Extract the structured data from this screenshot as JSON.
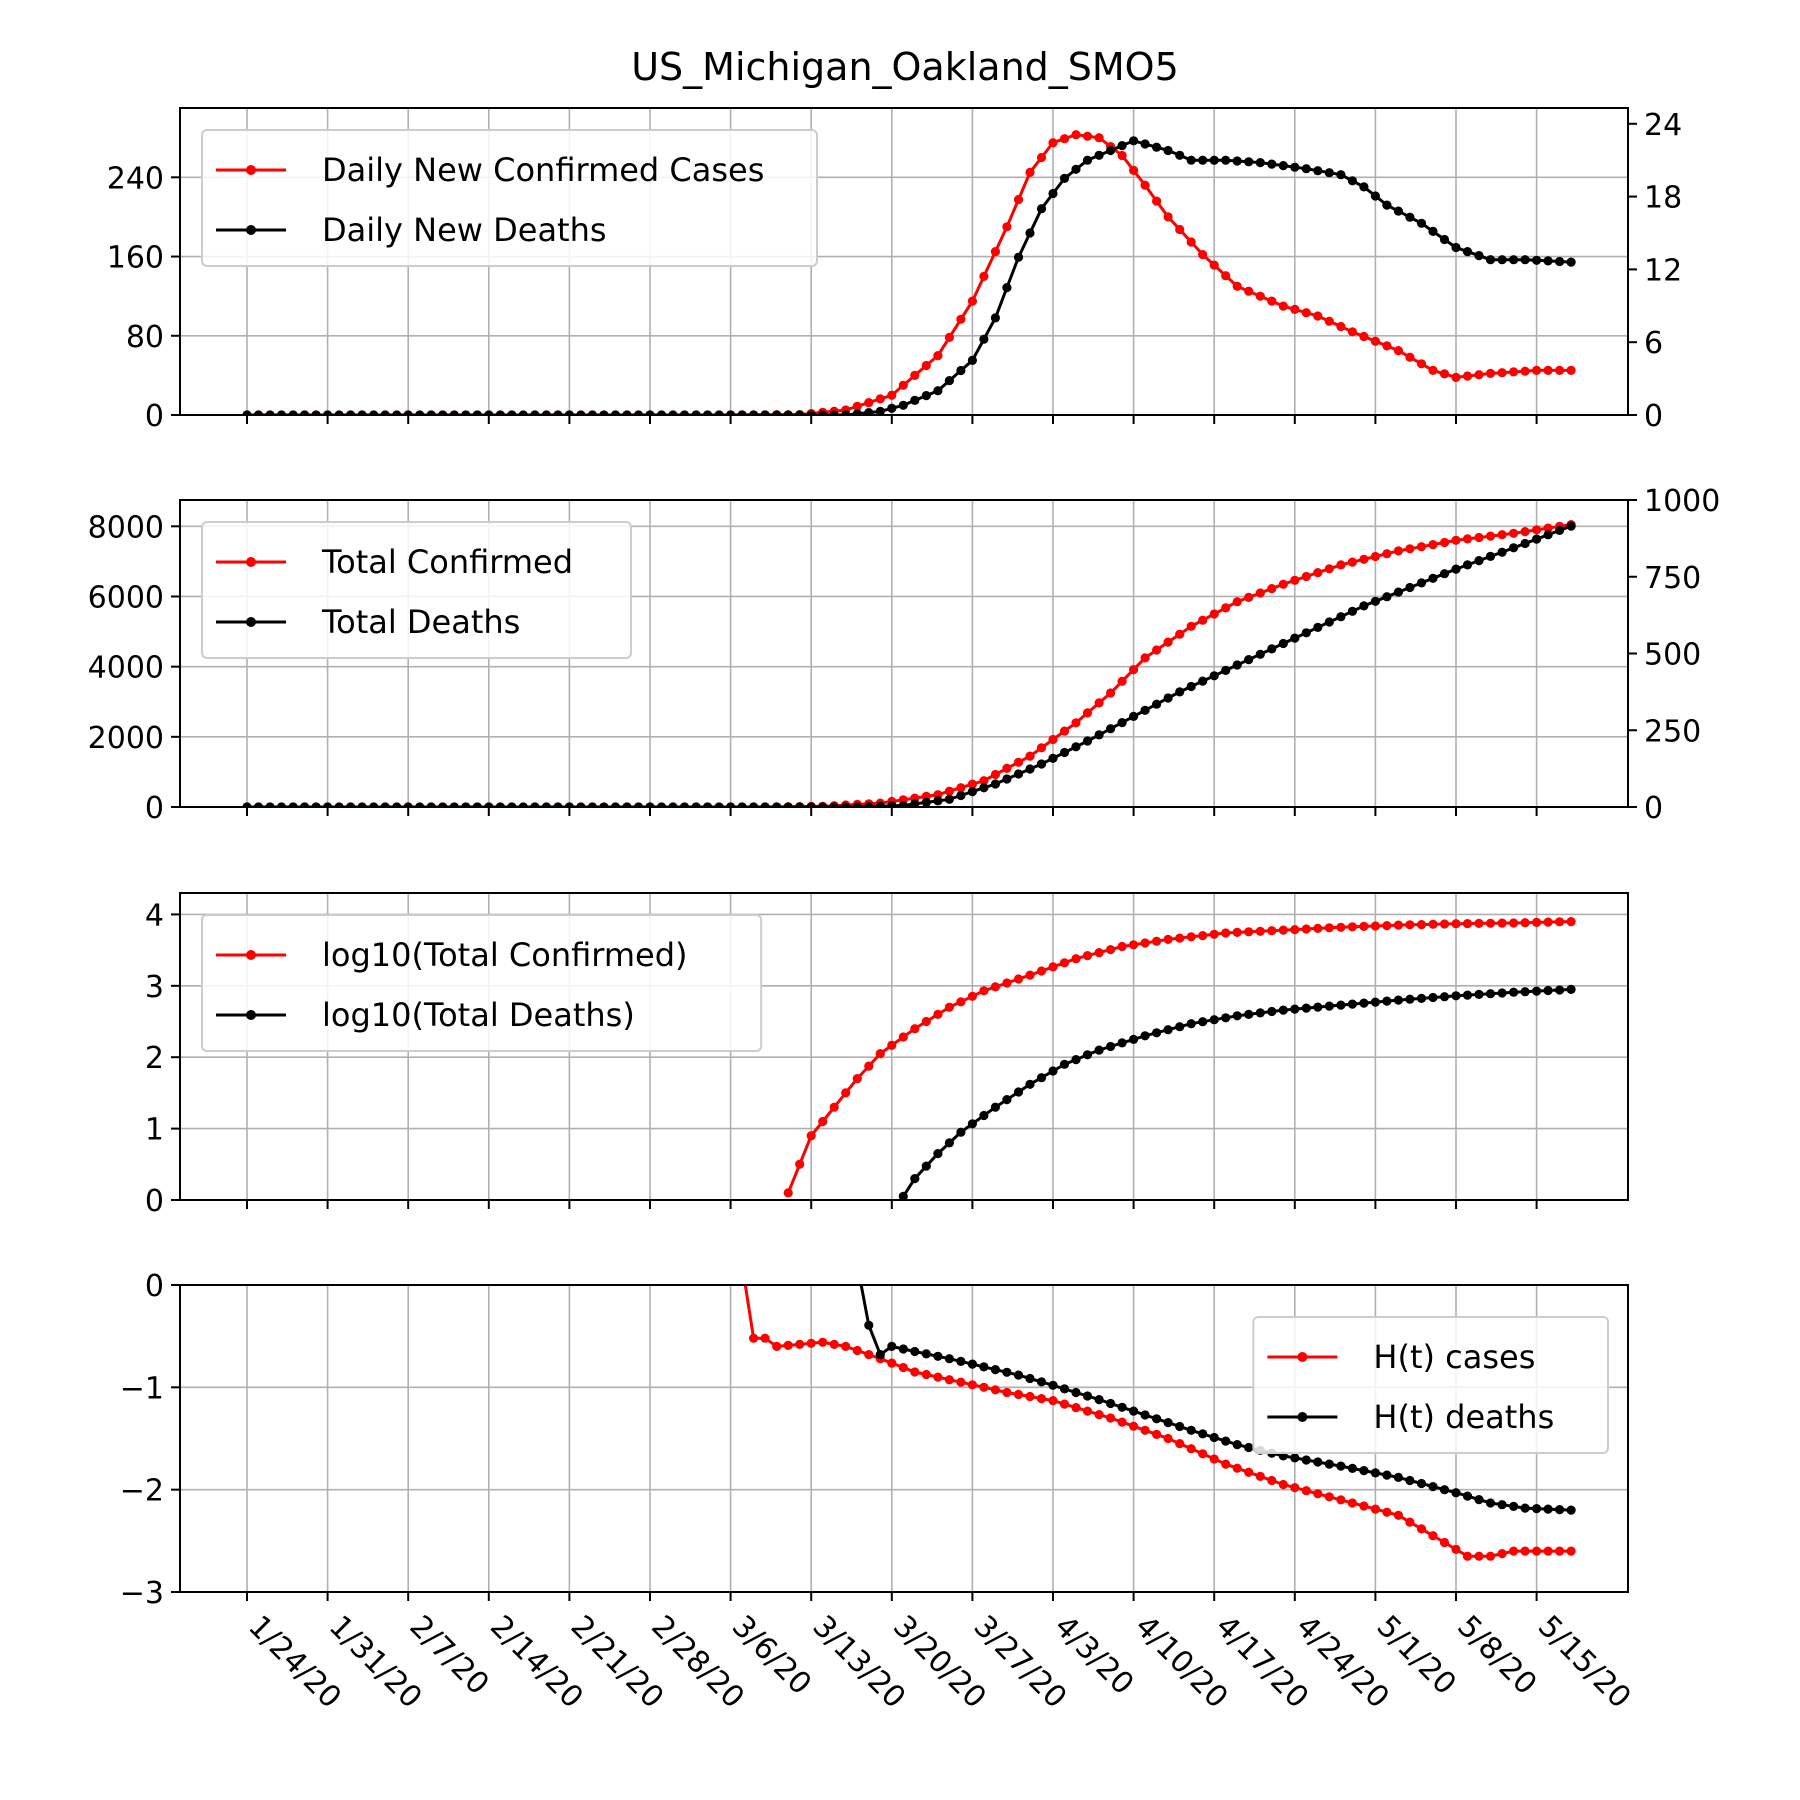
{
  "chart_data": {
    "title": "US_Michigan_Oakland_SMO5",
    "type": "line",
    "x_dates": [
      "1/24/20",
      "1/31/20",
      "2/7/20",
      "2/14/20",
      "2/21/20",
      "2/28/20",
      "3/6/20",
      "3/13/20",
      "3/20/20",
      "3/27/20",
      "4/3/20",
      "4/10/20",
      "4/17/20",
      "4/24/20",
      "5/1/20",
      "5/8/20",
      "5/15/20"
    ],
    "x_range": [
      "1/24/20",
      "5/15/20"
    ],
    "grid": true,
    "colors": {
      "cases": "#ff0000",
      "deaths": "#000000"
    },
    "panels": [
      {
        "name": "daily",
        "legend_position": "top-left",
        "y_left": {
          "ticks": [
            0,
            80,
            160,
            240
          ],
          "range": [
            0,
            310
          ]
        },
        "y_right": {
          "ticks": [
            0,
            6,
            12,
            18,
            24
          ],
          "range": [
            0,
            25.3
          ]
        },
        "series": [
          {
            "name": "Daily New Confirmed Cases",
            "axis": "left",
            "color": "#ff0000",
            "knots": [
              [
                0,
                0
              ],
              [
                40,
                0
              ],
              [
                48,
                0.4
              ],
              [
                52,
                5
              ],
              [
                56,
                20
              ],
              [
                60,
                60
              ],
              [
                63,
                115
              ],
              [
                66,
                190
              ],
              [
                68,
                245
              ],
              [
                70,
                275
              ],
              [
                72,
                283
              ],
              [
                74,
                280
              ],
              [
                76,
                262
              ],
              [
                78,
                232
              ],
              [
                80,
                200
              ],
              [
                83,
                162
              ],
              [
                86,
                130
              ],
              [
                90,
                110
              ],
              [
                93,
                100
              ],
              [
                96,
                84
              ],
              [
                100,
                65
              ],
              [
                103,
                45
              ],
              [
                105,
                38
              ],
              [
                108,
                42
              ],
              [
                112,
                45
              ],
              [
                115,
                45
              ]
            ]
          },
          {
            "name": "Daily New Deaths",
            "axis": "right",
            "color": "#000000",
            "knots": [
              [
                0,
                0
              ],
              [
                52,
                0
              ],
              [
                55,
                0.3
              ],
              [
                57,
                0.8
              ],
              [
                60,
                2
              ],
              [
                63,
                4.5
              ],
              [
                65,
                8
              ],
              [
                67,
                13
              ],
              [
                69,
                17
              ],
              [
                71,
                19.5
              ],
              [
                73,
                21
              ],
              [
                75,
                21.8
              ],
              [
                77,
                22.6
              ],
              [
                80,
                21.8
              ],
              [
                82,
                21
              ],
              [
                85,
                21
              ],
              [
                88,
                20.8
              ],
              [
                92,
                20.3
              ],
              [
                95,
                19.8
              ],
              [
                97,
                18.8
              ],
              [
                99,
                17.3
              ],
              [
                102,
                15.8
              ],
              [
                105,
                13.8
              ],
              [
                108,
                12.8
              ],
              [
                111,
                12.8
              ],
              [
                115,
                12.6
              ]
            ]
          }
        ]
      },
      {
        "name": "totals",
        "legend_position": "top-left",
        "y_left": {
          "ticks": [
            0,
            2000,
            4000,
            6000,
            8000
          ],
          "range": [
            0,
            8750
          ]
        },
        "y_right": {
          "ticks": [
            0,
            250,
            500,
            750,
            1000
          ],
          "range": [
            0,
            1000
          ]
        },
        "series": [
          {
            "name": "Total Confirmed",
            "axis": "left",
            "color": "#ff0000",
            "knots": [
              [
                0,
                0
              ],
              [
                45,
                0
              ],
              [
                50,
                20
              ],
              [
                55,
                110
              ],
              [
                60,
                350
              ],
              [
                64,
                750
              ],
              [
                68,
                1450
              ],
              [
                72,
                2400
              ],
              [
                75,
                3250
              ],
              [
                78,
                4250
              ],
              [
                82,
                5150
              ],
              [
                86,
                5850
              ],
              [
                90,
                6350
              ],
              [
                95,
                6900
              ],
              [
                100,
                7300
              ],
              [
                105,
                7600
              ],
              [
                110,
                7800
              ],
              [
                115,
                8050
              ]
            ]
          },
          {
            "name": "Total Deaths",
            "axis": "right",
            "color": "#000000",
            "knots": [
              [
                0,
                0
              ],
              [
                53,
                0
              ],
              [
                57,
                5
              ],
              [
                61,
                25
              ],
              [
                65,
                75
              ],
              [
                69,
                140
              ],
              [
                73,
                215
              ],
              [
                77,
                295
              ],
              [
                81,
                375
              ],
              [
                85,
                445
              ],
              [
                89,
                515
              ],
              [
                93,
                585
              ],
              [
                97,
                655
              ],
              [
                101,
                715
              ],
              [
                105,
                775
              ],
              [
                109,
                830
              ],
              [
                115,
                915
              ]
            ]
          }
        ]
      },
      {
        "name": "log10",
        "legend_position": "top-left",
        "y_left": {
          "ticks": [
            0,
            1,
            2,
            3,
            4
          ],
          "range": [
            0,
            4.3
          ]
        },
        "series": [
          {
            "name": "log10(Total Confirmed)",
            "axis": "left",
            "color": "#ff0000",
            "knots": [
              [
                47,
                0.1
              ],
              [
                48,
                0.5
              ],
              [
                49,
                0.9
              ],
              [
                51,
                1.3
              ],
              [
                53,
                1.7
              ],
              [
                55,
                2.05
              ],
              [
                58,
                2.4
              ],
              [
                61,
                2.7
              ],
              [
                64,
                2.93
              ],
              [
                68,
                3.15
              ],
              [
                72,
                3.38
              ],
              [
                76,
                3.55
              ],
              [
                80,
                3.65
              ],
              [
                85,
                3.74
              ],
              [
                90,
                3.78
              ],
              [
                95,
                3.82
              ],
              [
                100,
                3.85
              ],
              [
                105,
                3.87
              ],
              [
                110,
                3.88
              ],
              [
                115,
                3.9
              ]
            ]
          },
          {
            "name": "log10(Total Deaths)",
            "axis": "left",
            "color": "#000000",
            "knots": [
              [
                57,
                0.05
              ],
              [
                58,
                0.3
              ],
              [
                60,
                0.65
              ],
              [
                62,
                0.95
              ],
              [
                65,
                1.3
              ],
              [
                68,
                1.62
              ],
              [
                71,
                1.9
              ],
              [
                74,
                2.1
              ],
              [
                78,
                2.3
              ],
              [
                82,
                2.47
              ],
              [
                86,
                2.58
              ],
              [
                90,
                2.66
              ],
              [
                95,
                2.73
              ],
              [
                100,
                2.8
              ],
              [
                105,
                2.86
              ],
              [
                110,
                2.91
              ],
              [
                115,
                2.95
              ]
            ]
          }
        ]
      },
      {
        "name": "hurst",
        "legend_position": "upper-right",
        "y_left": {
          "ticks": [
            0,
            -1,
            -2,
            -3
          ],
          "range": [
            -3,
            0
          ]
        },
        "series": [
          {
            "name": "H(t) cases",
            "axis": "left",
            "color": "#ff0000",
            "knots": [
              [
                43,
                0.2
              ],
              [
                43.3,
                -0.3
              ],
              [
                43.7,
                -0.52
              ],
              [
                45,
                -0.52
              ],
              [
                46,
                -0.6
              ],
              [
                48,
                -0.58
              ],
              [
                50,
                -0.56
              ],
              [
                52,
                -0.6
              ],
              [
                55,
                -0.72
              ],
              [
                58,
                -0.85
              ],
              [
                62,
                -0.95
              ],
              [
                66,
                -1.05
              ],
              [
                70,
                -1.13
              ],
              [
                75,
                -1.3
              ],
              [
                80,
                -1.5
              ],
              [
                85,
                -1.75
              ],
              [
                90,
                -1.95
              ],
              [
                95,
                -2.1
              ],
              [
                100,
                -2.25
              ],
              [
                103,
                -2.45
              ],
              [
                106,
                -2.65
              ],
              [
                108,
                -2.65
              ],
              [
                110,
                -2.6
              ],
              [
                115,
                -2.6
              ]
            ]
          },
          {
            "name": "H(t) deaths",
            "axis": "left",
            "color": "#000000",
            "knots": [
              [
                53,
                0.2
              ],
              [
                53.3,
                -0.1
              ],
              [
                53.7,
                -0.3
              ],
              [
                54.5,
                -0.55
              ],
              [
                55,
                -0.68
              ],
              [
                56,
                -0.6
              ],
              [
                58,
                -0.65
              ],
              [
                61,
                -0.72
              ],
              [
                64,
                -0.8
              ],
              [
                67,
                -0.88
              ],
              [
                70,
                -0.98
              ],
              [
                74,
                -1.12
              ],
              [
                78,
                -1.27
              ],
              [
                82,
                -1.42
              ],
              [
                86,
                -1.56
              ],
              [
                90,
                -1.67
              ],
              [
                95,
                -1.77
              ],
              [
                100,
                -1.88
              ],
              [
                105,
                -2.03
              ],
              [
                108,
                -2.13
              ],
              [
                111,
                -2.18
              ],
              [
                115,
                -2.2
              ]
            ]
          }
        ]
      }
    ]
  }
}
